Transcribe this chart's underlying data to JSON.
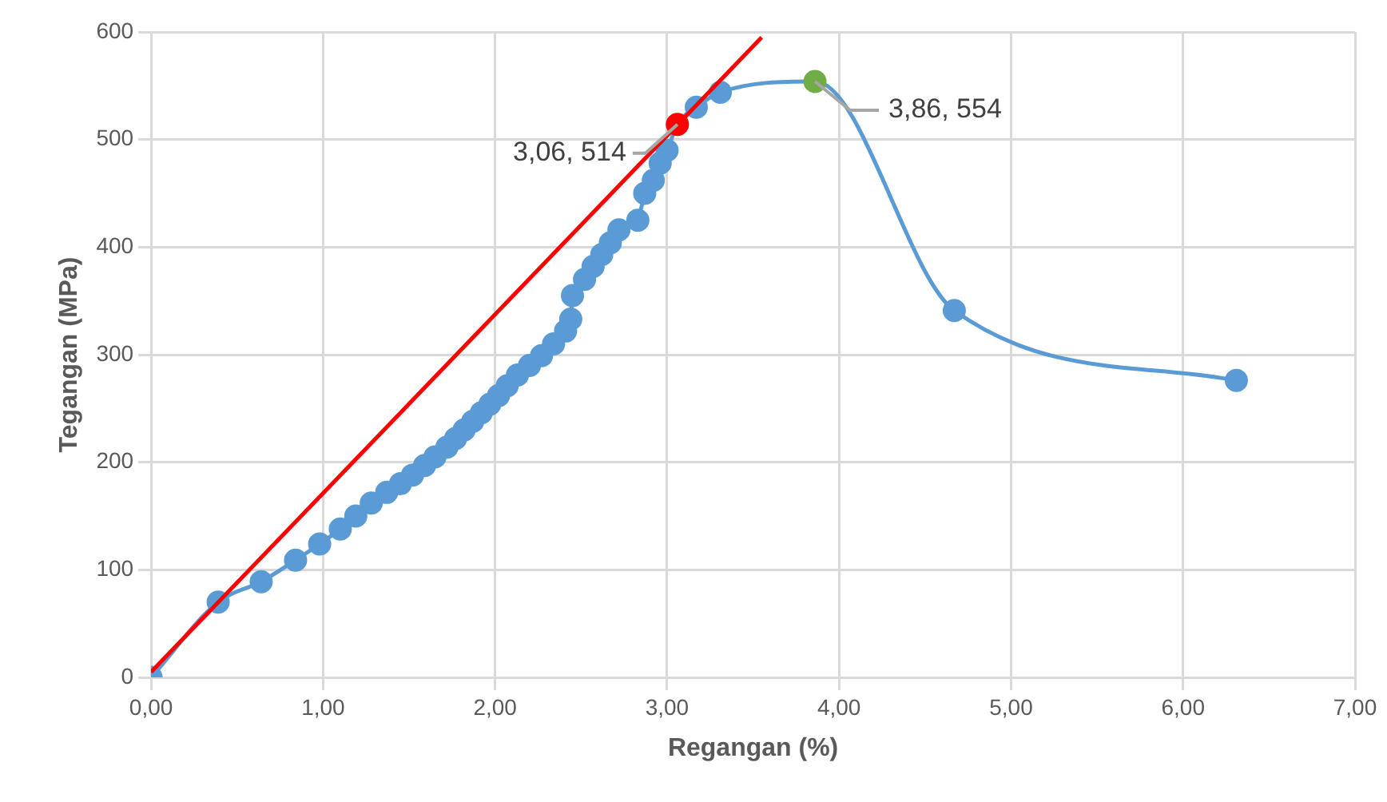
{
  "chart_data": {
    "type": "line",
    "xlabel": "Regangan (%)",
    "ylabel": "Tegangan (MPa)",
    "xlim": [
      0,
      7
    ],
    "xticks": [
      {
        "value": 0,
        "label": "0,00"
      },
      {
        "value": 1,
        "label": "1,00"
      },
      {
        "value": 2,
        "label": "2,00"
      },
      {
        "value": 3,
        "label": "3,00"
      },
      {
        "value": 4,
        "label": "4,00"
      },
      {
        "value": 5,
        "label": "5,00"
      },
      {
        "value": 6,
        "label": "6,00"
      },
      {
        "value": 7,
        "label": "7,00"
      }
    ],
    "ylim": [
      0,
      600
    ],
    "yticks": [
      0,
      100,
      200,
      300,
      400,
      500,
      600
    ],
    "grid": true,
    "legend": false,
    "marker": "circle",
    "series": [
      {
        "color": "#5b9bd5",
        "x": [
          0,
          0.39,
          0.64,
          0.84,
          0.98,
          1.1,
          1.19,
          1.28,
          1.37,
          1.45,
          1.52,
          1.59,
          1.65,
          1.72,
          1.77,
          1.82,
          1.87,
          1.92,
          1.97,
          2.02,
          2.07,
          2.13,
          2.2,
          2.27,
          2.34,
          2.41,
          2.44,
          2.45,
          2.52,
          2.57,
          2.62,
          2.67,
          2.72,
          2.83,
          2.87,
          2.92,
          2.96,
          3.0,
          3.06,
          3.17,
          3.31,
          3.86,
          4.67,
          6.31
        ],
        "values": [
          0,
          70,
          89,
          109,
          124,
          138,
          150,
          162,
          172,
          180,
          188,
          197,
          205,
          214,
          222,
          230,
          238,
          246,
          254,
          262,
          271,
          281,
          290,
          299,
          310,
          322,
          333,
          355,
          370,
          382,
          393,
          404,
          416,
          425,
          450,
          462,
          478,
          490,
          514,
          530,
          544,
          554,
          341,
          276
        ],
        "colors": [
          "#5b9bd5",
          "#5b9bd5",
          "#5b9bd5",
          "#5b9bd5",
          "#5b9bd5",
          "#5b9bd5",
          "#5b9bd5",
          "#5b9bd5",
          "#5b9bd5",
          "#5b9bd5",
          "#5b9bd5",
          "#5b9bd5",
          "#5b9bd5",
          "#5b9bd5",
          "#5b9bd5",
          "#5b9bd5",
          "#5b9bd5",
          "#5b9bd5",
          "#5b9bd5",
          "#5b9bd5",
          "#5b9bd5",
          "#5b9bd5",
          "#5b9bd5",
          "#5b9bd5",
          "#5b9bd5",
          "#5b9bd5",
          "#5b9bd5",
          "#5b9bd5",
          "#5b9bd5",
          "#5b9bd5",
          "#5b9bd5",
          "#5b9bd5",
          "#5b9bd5",
          "#5b9bd5",
          "#5b9bd5",
          "#5b9bd5",
          "#5b9bd5",
          "#5b9bd5",
          "#ff0000",
          "#5b9bd5",
          "#5b9bd5",
          "#70ad47",
          "#5b9bd5",
          "#5b9bd5"
        ]
      },
      {
        "type": "line",
        "color": "#ff0000",
        "marker": "none",
        "x": [
          0,
          3.55
        ],
        "values": [
          5,
          595
        ]
      }
    ],
    "annotations": [
      {
        "text": "3,06, 514",
        "x": 3.06,
        "y": 514
      },
      {
        "text": "3,86, 554",
        "x": 3.86,
        "y": 554
      }
    ]
  }
}
